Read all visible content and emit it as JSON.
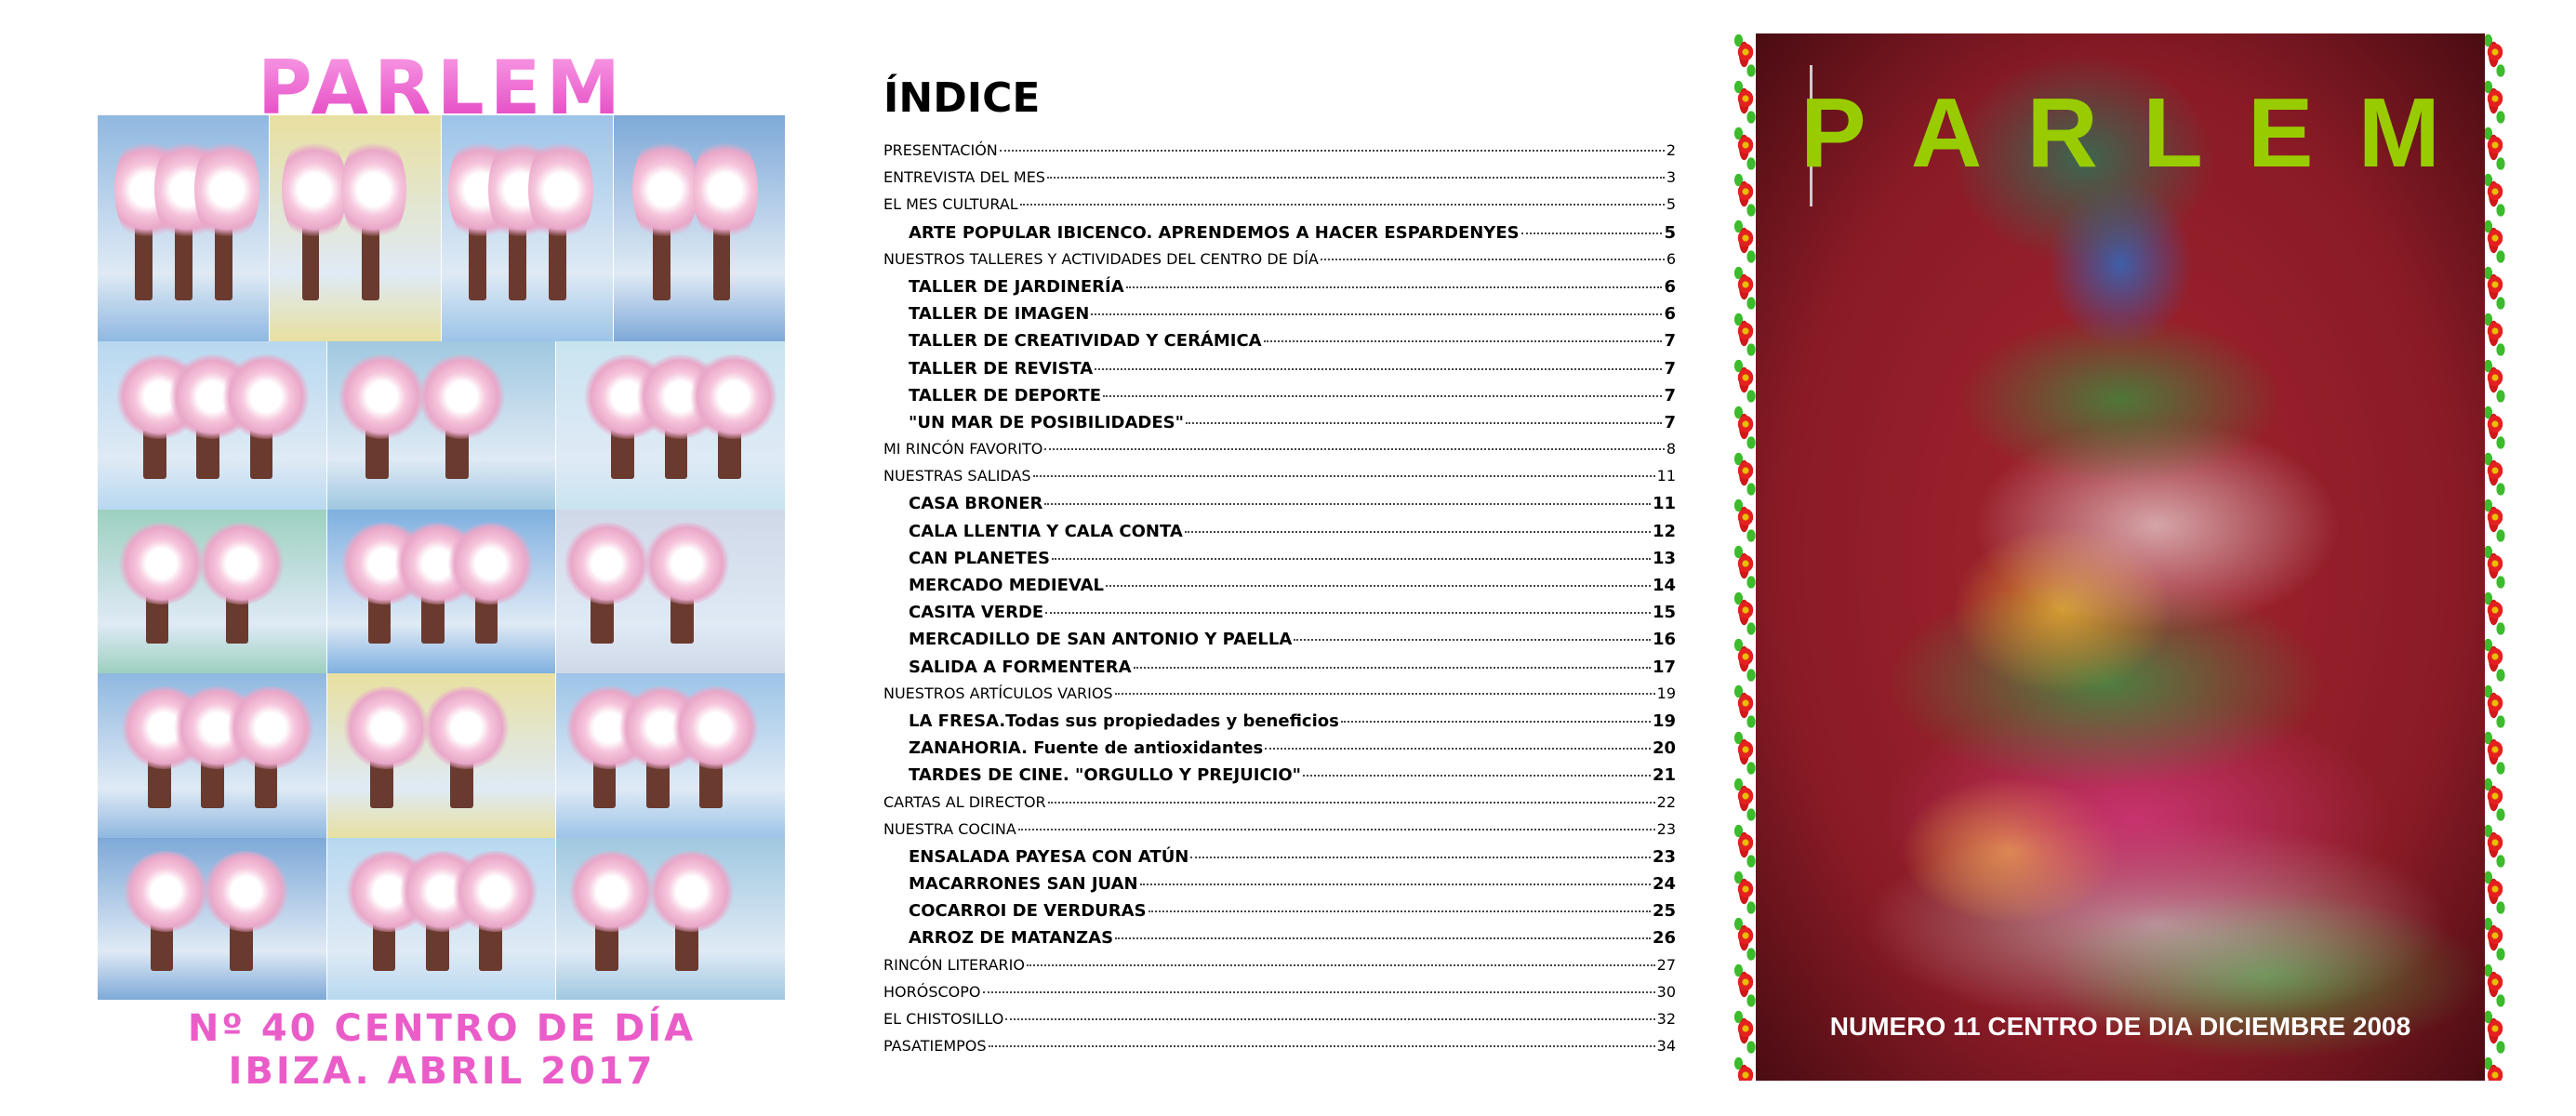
{
  "left_cover": {
    "title": "PARLEM",
    "line1": "Nº 40  CENTRO DE DÍA",
    "line2": "IBIZA. ABRIL 2017",
    "title_color": "#f06ad0"
  },
  "index": {
    "title": "ÍNDICE",
    "entries": [
      {
        "label": "PRESENTACIÓN",
        "page": "2",
        "level": 1
      },
      {
        "label": "ENTREVISTA DEL MES",
        "page": "3",
        "level": 1
      },
      {
        "label": "EL MES CULTURAL",
        "page": "5",
        "level": 1
      },
      {
        "label": "ARTE POPULAR IBICENCO. APRENDEMOS A HACER ESPARDENYES",
        "page": "5",
        "level": 2
      },
      {
        "label": "NUESTROS TALLERES Y ACTIVIDADES DEL CENTRO DE DÍA",
        "page": "6",
        "level": 1
      },
      {
        "label": "TALLER DE JARDINERÍA",
        "page": "6",
        "level": 2
      },
      {
        "label": "TALLER DE IMAGEN",
        "page": "6",
        "level": 2
      },
      {
        "label": "TALLER DE CREATIVIDAD Y CERÁMICA",
        "page": "7",
        "level": 2
      },
      {
        "label": "TALLER DE REVISTA",
        "page": "7",
        "level": 2
      },
      {
        "label": "TALLER DE DEPORTE",
        "page": "7",
        "level": 2
      },
      {
        "label": "\"UN MAR DE POSIBILIDADES\"",
        "page": "7",
        "level": 2
      },
      {
        "label": "MI RINCÓN FAVORITO",
        "page": "8",
        "level": 1
      },
      {
        "label": "NUESTRAS SALIDAS",
        "page": "11",
        "level": 1
      },
      {
        "label": "CASA BRONER",
        "page": "11",
        "level": 2
      },
      {
        "label": "CALA LLENTIA Y CALA CONTA",
        "page": "12",
        "level": 2
      },
      {
        "label": "CAN PLANETES",
        "page": "13",
        "level": 2
      },
      {
        "label": "MERCADO MEDIEVAL",
        "page": "14",
        "level": 2
      },
      {
        "label": "CASITA VERDE",
        "page": "15",
        "level": 2
      },
      {
        "label": "MERCADILLO DE SAN ANTONIO Y PAELLA",
        "page": "16",
        "level": 2
      },
      {
        "label": "SALIDA A FORMENTERA",
        "page": "17",
        "level": 2
      },
      {
        "label": "NUESTROS ARTÍCULOS VARIOS",
        "page": "19",
        "level": 1
      },
      {
        "label": "LA FRESA.Todas sus propiedades y beneficios",
        "page": "19",
        "level": 2
      },
      {
        "label": "ZANAHORIA. Fuente de antioxidantes",
        "page": "20",
        "level": 2
      },
      {
        "label": "TARDES DE CINE. \"ORGULLO Y PREJUICIO\"",
        "page": "21",
        "level": 2
      },
      {
        "label": "CARTAS AL DIRECTOR",
        "page": "22",
        "level": 1
      },
      {
        "label": "NUESTRA COCINA",
        "page": "23",
        "level": 1
      },
      {
        "label": "ENSALADA PAYESA CON ATÚN",
        "page": "23",
        "level": 2
      },
      {
        "label": "MACARRONES SAN JUAN",
        "page": "24",
        "level": 2
      },
      {
        "label": "COCARROI DE VERDURAS",
        "page": "25",
        "level": 2
      },
      {
        "label": "ARROZ DE MATANZAS",
        "page": "26",
        "level": 2
      },
      {
        "label": "RINCÓN LITERARIO",
        "page": "27",
        "level": 1
      },
      {
        "label": "HORÓSCOPO",
        "page": "30",
        "level": 1
      },
      {
        "label": "EL CHISTOSILLO",
        "page": "32",
        "level": 1
      },
      {
        "label": "PASATIEMPOS",
        "page": "34",
        "level": 1
      }
    ]
  },
  "right_cover": {
    "title_letters": [
      "P",
      "A",
      "R",
      "L",
      "E",
      "M"
    ],
    "subtitle": "NUMERO 11 CENTRO DE DIA  DICIEMBRE 2008",
    "title_color": "#99cc00",
    "background_color": "#9a2230"
  }
}
